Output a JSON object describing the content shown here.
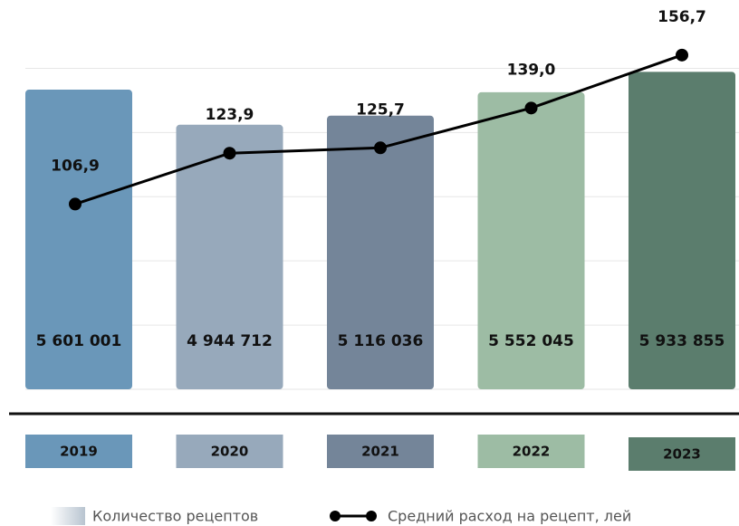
{
  "chart_data": {
    "type": "bar",
    "categories": [
      "2019",
      "2020",
      "2021",
      "2022",
      "2023"
    ],
    "series": [
      {
        "name": "Количество рецептов",
        "type": "bar",
        "colors": [
          "#6a97b9",
          "#97a9bb",
          "#748599",
          "#9dbca4",
          "#5b7d6d"
        ],
        "values": [
          5601001,
          4944712,
          5116036,
          5552045,
          5933855
        ],
        "value_labels": [
          "5 601 001",
          "4 944 712",
          "5 116 036",
          "5 552 045",
          "5 933 855"
        ]
      },
      {
        "name": "Средний расход на рецепт, лей",
        "type": "line",
        "axis": "y2",
        "color": "#000000",
        "values": [
          106.9,
          123.9,
          125.7,
          139.0,
          156.7
        ],
        "value_labels": [
          "106,9",
          "123,9",
          "125,7",
          "139,0",
          "156,7"
        ]
      }
    ],
    "ylim": [
      0,
      6600000
    ],
    "yticks": [
      0,
      1200000,
      2400000,
      3600000,
      4800000,
      6000000
    ],
    "y2lim": [
      45,
      163
    ],
    "grid": true
  }
}
